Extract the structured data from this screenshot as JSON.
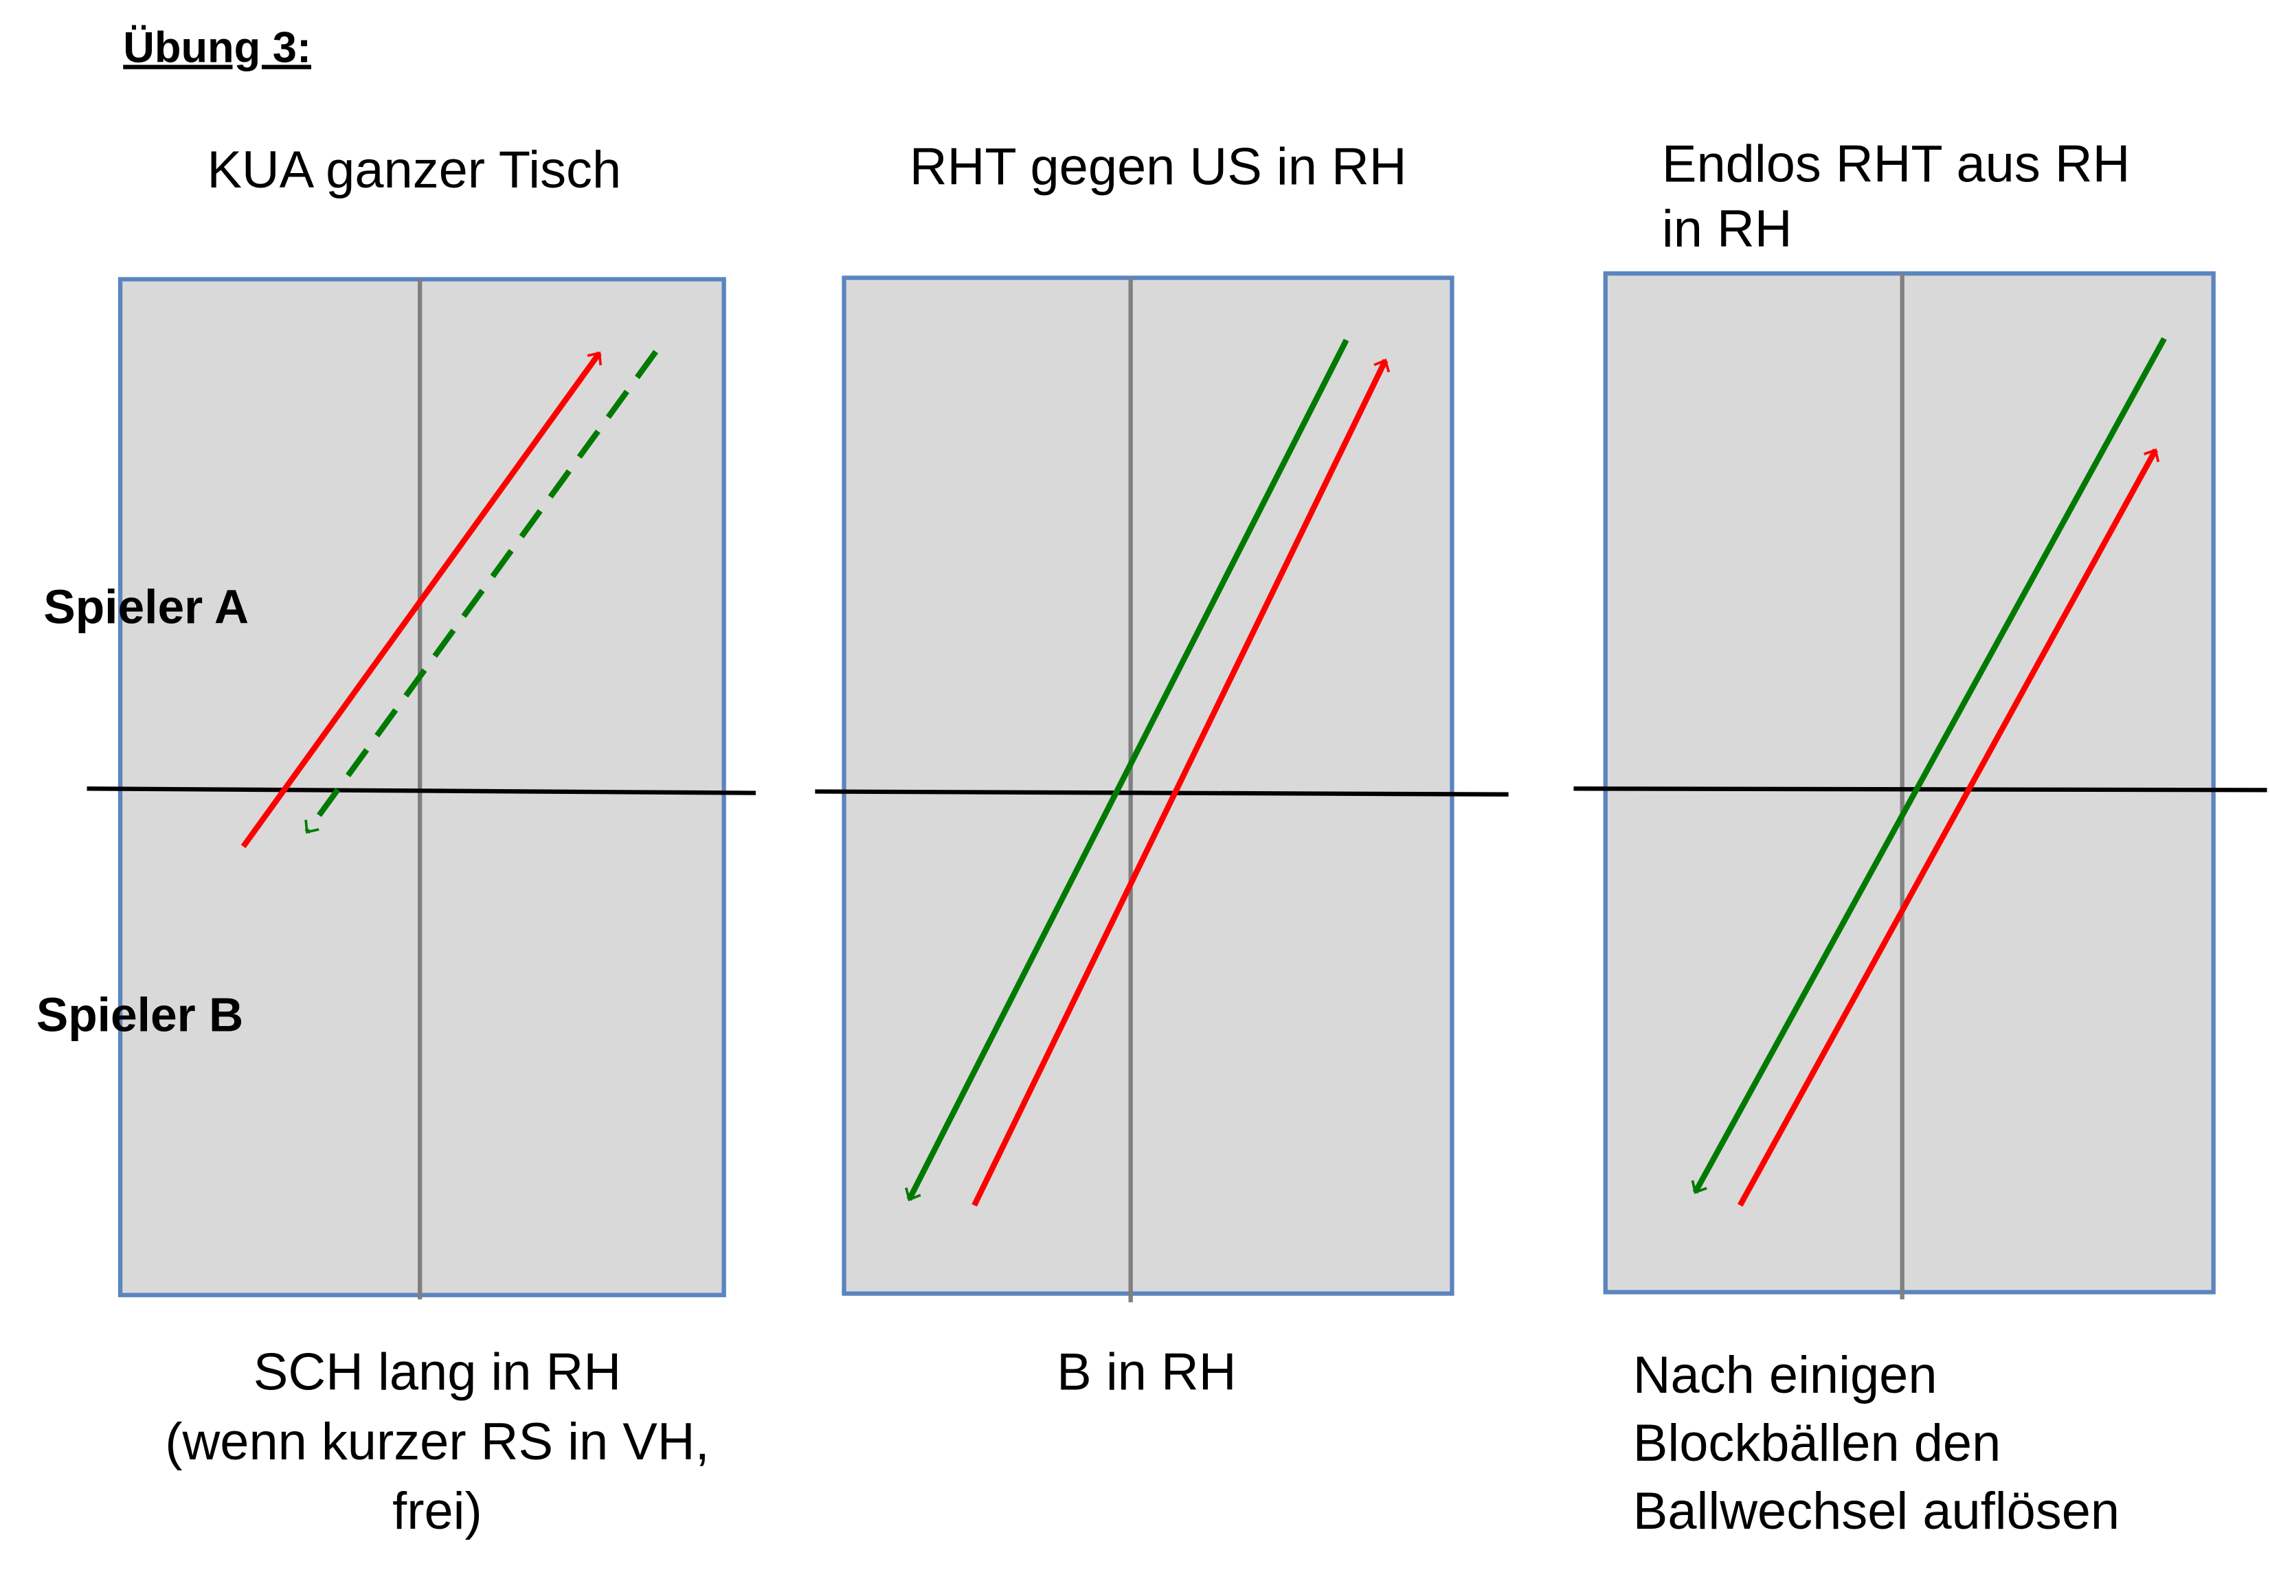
{
  "title": "Übung 3:",
  "players": {
    "a": "Spieler A",
    "b": "Spieler B"
  },
  "panels": [
    {
      "heading": [
        "KUA ganzer Tisch"
      ],
      "caption": [
        "SCH lang in RH",
        "(wenn kurzer RS in VH,",
        "frei)"
      ]
    },
    {
      "heading": [
        "RHT gegen US in RH"
      ],
      "caption": [
        "B in RH"
      ]
    },
    {
      "heading": [
        "Endlos RHT aus RH",
        "in RH"
      ],
      "caption": [
        "Nach einigen",
        "Blockbällen den",
        "Ballwechsel auflösen"
      ]
    }
  ]
}
